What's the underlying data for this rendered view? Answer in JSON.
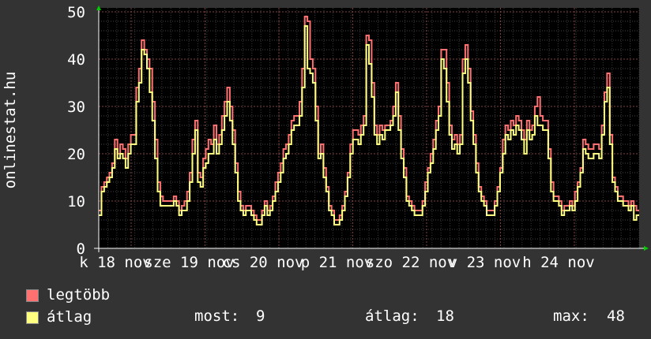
{
  "chart_data": {
    "type": "line",
    "ylabel": "onlinestat.hu",
    "ylim": [
      0,
      50
    ],
    "y_ticks": [
      "0",
      "10",
      "20",
      "30",
      "40",
      "50"
    ],
    "x_ticks": [
      "k 18 nov",
      "sze 19 nov",
      "cs 20 nov",
      "p 21 nov",
      "szo 22 nov",
      "v 23 nov",
      "h 24 nov"
    ],
    "grid": true,
    "series": [
      {
        "name": "legtöbb",
        "color": "#ff7070",
        "values": [
          8,
          13,
          14,
          15,
          16,
          18,
          23,
          20,
          22,
          21,
          19,
          22,
          24,
          24,
          34,
          38,
          44,
          42,
          40,
          38,
          31,
          23,
          14,
          11,
          10,
          10,
          10,
          10,
          11,
          10,
          8,
          9,
          10,
          12,
          16,
          23,
          27,
          16,
          15,
          19,
          21,
          23,
          22,
          26,
          22,
          24,
          28,
          31,
          34,
          30,
          25,
          18,
          12,
          9,
          8,
          9,
          9,
          8,
          7,
          6,
          6,
          8,
          10,
          8,
          9,
          11,
          14,
          16,
          18,
          21,
          22,
          24,
          27,
          28,
          28,
          31,
          38,
          49,
          48,
          40,
          38,
          30,
          20,
          22,
          17,
          13,
          9,
          8,
          6,
          6,
          7,
          9,
          12,
          16,
          22,
          25,
          25,
          24,
          26,
          28,
          45,
          44,
          35,
          26,
          24,
          26,
          25,
          26,
          26,
          27,
          30,
          35,
          28,
          21,
          17,
          11,
          10,
          9,
          8,
          8,
          8,
          10,
          14,
          17,
          20,
          23,
          27,
          30,
          42,
          42,
          35,
          26,
          23,
          24,
          22,
          24,
          40,
          43,
          38,
          29,
          24,
          18,
          13,
          11,
          10,
          8,
          8,
          8,
          10,
          13,
          17,
          23,
          26,
          25,
          27,
          26,
          28,
          27,
          25,
          23,
          27,
          25,
          26,
          30,
          32,
          28,
          27,
          27,
          21,
          14,
          11,
          11,
          10,
          8,
          9,
          9,
          10,
          9,
          12,
          14,
          17,
          23,
          22,
          21,
          21,
          22,
          22,
          21,
          26,
          33,
          37,
          24,
          15,
          13,
          11,
          11,
          10,
          10,
          9,
          10,
          9,
          8
        ]
      },
      {
        "name": "átlag",
        "color": "#ffff80",
        "values": [
          7,
          12,
          13,
          14,
          15,
          17,
          21,
          19,
          20,
          19,
          17,
          20,
          22,
          22,
          31,
          35,
          42,
          41,
          38,
          33,
          27,
          19,
          12,
          9,
          9,
          9,
          9,
          9,
          10,
          9,
          7,
          8,
          8,
          10,
          14,
          20,
          25,
          14,
          13,
          17,
          18,
          20,
          20,
          23,
          20,
          22,
          25,
          28,
          31,
          27,
          22,
          16,
          10,
          8,
          7,
          8,
          8,
          7,
          6,
          5,
          5,
          7,
          9,
          7,
          8,
          10,
          12,
          14,
          16,
          19,
          20,
          22,
          25,
          26,
          26,
          28,
          34,
          47,
          38,
          37,
          35,
          27,
          19,
          20,
          15,
          12,
          8,
          7,
          5,
          5,
          6,
          8,
          11,
          15,
          20,
          23,
          23,
          22,
          24,
          26,
          43,
          39,
          32,
          24,
          22,
          24,
          23,
          25,
          25,
          26,
          28,
          33,
          25,
          19,
          15,
          10,
          9,
          8,
          7,
          7,
          7,
          9,
          12,
          16,
          18,
          21,
          25,
          28,
          40,
          38,
          31,
          24,
          21,
          22,
          20,
          22,
          37,
          40,
          35,
          27,
          22,
          16,
          12,
          10,
          9,
          7,
          7,
          7,
          9,
          12,
          16,
          20,
          24,
          23,
          25,
          24,
          26,
          25,
          23,
          20,
          25,
          23,
          24,
          28,
          26,
          26,
          25,
          25,
          19,
          12,
          10,
          10,
          9,
          7,
          8,
          8,
          9,
          8,
          10,
          13,
          16,
          21,
          20,
          19,
          19,
          20,
          20,
          19,
          24,
          31,
          34,
          22,
          14,
          12,
          10,
          10,
          9,
          9,
          8,
          9,
          6,
          7
        ]
      }
    ],
    "stats": {
      "now_label": "most:",
      "now": "9",
      "avg_label": "átlag:",
      "avg": "18",
      "max_label": "max:",
      "max": "48"
    }
  }
}
